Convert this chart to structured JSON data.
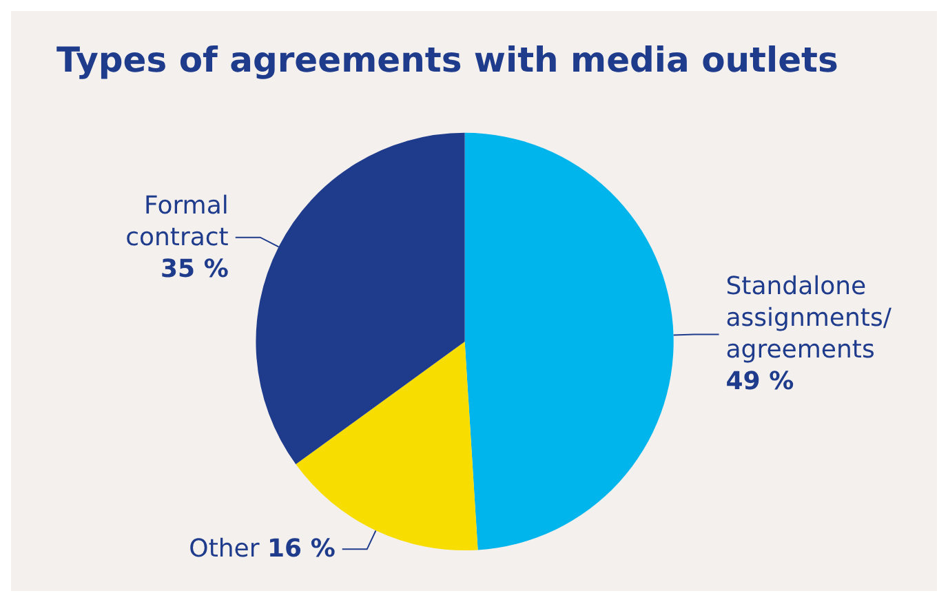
{
  "chart_data": {
    "type": "pie",
    "title": "Types of agreements with media outlets",
    "categories": [
      "Standalone assignments/agreements",
      "Other",
      "Formal contract"
    ],
    "values": [
      49,
      16,
      35
    ],
    "colors": [
      "#00b5ec",
      "#f7dd00",
      "#1f3b8c"
    ],
    "value_labels": [
      "49 %",
      "16 %",
      "35 %"
    ],
    "legend": false
  }
}
